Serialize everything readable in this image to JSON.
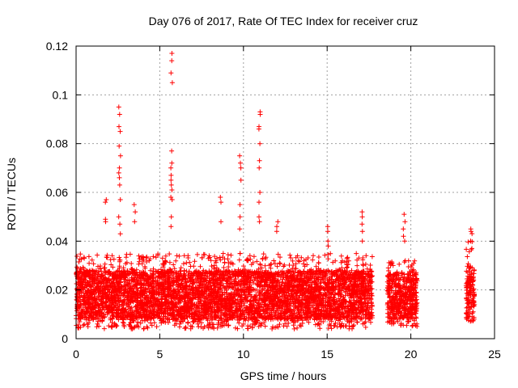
{
  "chart_data": {
    "type": "scatter",
    "title": "Day 076 of 2017, Rate Of TEC Index for receiver cruz",
    "xlabel": "GPS time / hours",
    "ylabel": "ROTI / TECUs",
    "xlim": [
      0,
      25
    ],
    "ylim": [
      0,
      0.12
    ],
    "x_ticks": [
      "0",
      "5",
      "10",
      "15",
      "20",
      "25"
    ],
    "y_ticks": [
      "0",
      "0.02",
      "0.04",
      "0.06",
      "0.08",
      "0.1",
      "0.12"
    ],
    "grid": true,
    "marker": "+",
    "color": "#ff0000",
    "series": [
      {
        "bands": [
          {
            "x": [
              0.0,
              17.7
            ],
            "y_core": [
              0.008,
              0.028
            ],
            "y_spread": [
              0.004,
              0.035
            ]
          },
          {
            "x": [
              18.6,
              20.4
            ],
            "y_core": [
              0.008,
              0.027
            ],
            "y_spread": [
              0.005,
              0.032
            ]
          },
          {
            "x": [
              23.3,
              23.8
            ],
            "y_core": [
              0.008,
              0.03
            ],
            "y_spread": [
              0.007,
              0.045
            ]
          }
        ],
        "spikes": [
          {
            "x": 2.6,
            "y": [
              0.095,
              0.092,
              0.087,
              0.085,
              0.079,
              0.075,
              0.07,
              0.068,
              0.066,
              0.063,
              0.057,
              0.05,
              0.047,
              0.043
            ]
          },
          {
            "x": 5.7,
            "y": [
              0.117,
              0.114,
              0.109,
              0.105,
              0.077,
              0.072,
              0.07,
              0.067,
              0.065,
              0.063,
              0.061,
              0.058,
              0.057,
              0.05,
              0.046
            ]
          },
          {
            "x": 1.75,
            "y": [
              0.057,
              0.056,
              0.049,
              0.048
            ]
          },
          {
            "x": 3.5,
            "y": [
              0.055,
              0.052,
              0.048
            ]
          },
          {
            "x": 8.6,
            "y": [
              0.058,
              0.056,
              0.048
            ]
          },
          {
            "x": 9.8,
            "y": [
              0.075,
              0.072,
              0.07,
              0.065,
              0.055,
              0.05,
              0.045
            ]
          },
          {
            "x": 10.95,
            "y": [
              0.093,
              0.092,
              0.087,
              0.086,
              0.08,
              0.073,
              0.07,
              0.06,
              0.056,
              0.05,
              0.048
            ]
          },
          {
            "x": 12.0,
            "y": [
              0.048,
              0.046,
              0.044
            ]
          },
          {
            "x": 15.05,
            "y": [
              0.046,
              0.044,
              0.04,
              0.038
            ]
          },
          {
            "x": 17.1,
            "y": [
              0.052,
              0.05,
              0.047,
              0.044,
              0.04
            ]
          },
          {
            "x": 19.6,
            "y": [
              0.051,
              0.048,
              0.045,
              0.042,
              0.04
            ]
          },
          {
            "x": 23.6,
            "y": [
              0.045,
              0.044,
              0.04,
              0.037
            ]
          }
        ]
      }
    ]
  }
}
